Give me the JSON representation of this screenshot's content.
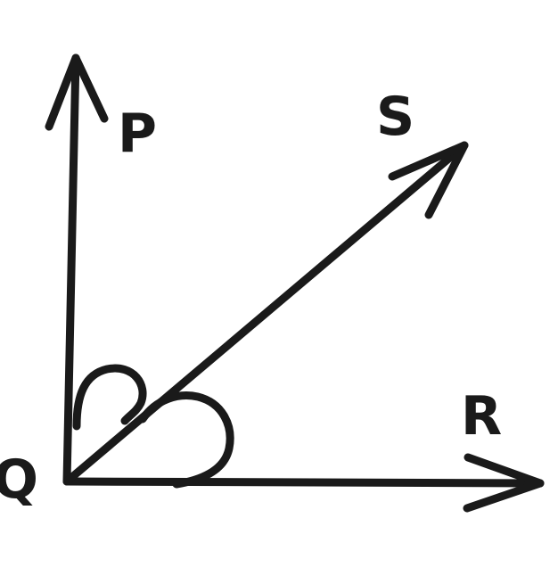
{
  "diagram": {
    "labels": {
      "p": "P",
      "q": "Q",
      "r": "R",
      "s": "S"
    },
    "colors": {
      "ink": "#1a1a1a",
      "background": "#ffffff"
    }
  }
}
